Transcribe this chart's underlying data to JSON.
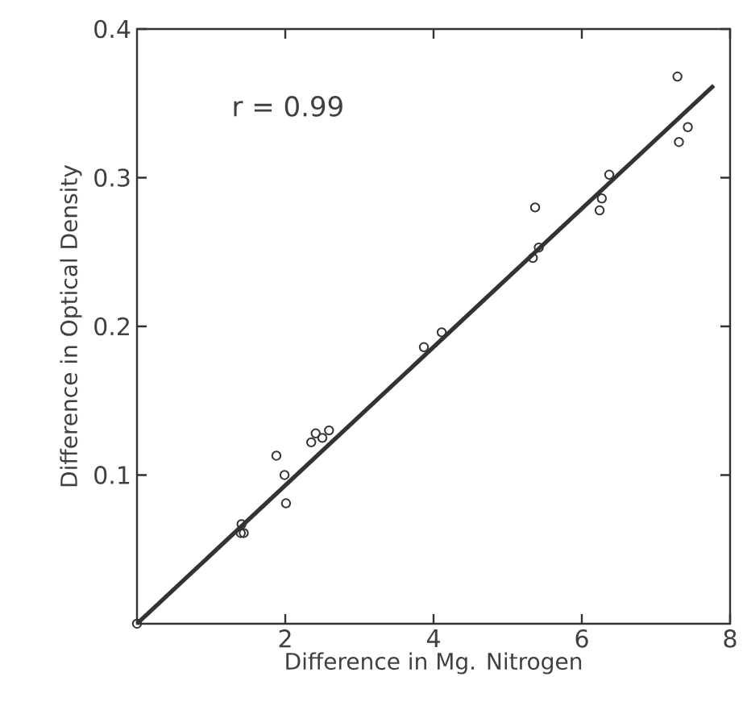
{
  "chart_data": {
    "type": "scatter",
    "xlabel": "Difference in Mg. Nitrogen",
    "ylabel": "Difference in Optical Density",
    "annotations": [
      "r = 0.99"
    ],
    "xlim": [
      0,
      8
    ],
    "ylim": [
      0,
      0.4
    ],
    "xticks": [
      2,
      4,
      6,
      8
    ],
    "yticks": [
      0.1,
      0.2,
      0.3,
      0.4
    ],
    "series": [
      {
        "color": "#333333",
        "marker": "circle",
        "x": [
          0,
          1.41,
          1.4,
          1.44,
          1.88,
          1.99,
          2.01,
          2.35,
          2.41,
          2.5,
          2.59,
          3.87,
          4.11,
          5.34,
          5.42,
          5.37,
          6.24,
          6.27,
          6.37,
          7.29,
          7.31,
          7.43
        ],
        "values": [
          0,
          0.067,
          0.061,
          0.061,
          0.113,
          0.1,
          0.081,
          0.122,
          0.128,
          0.125,
          0.13,
          0.186,
          0.196,
          0.246,
          0.253,
          0.28,
          0.278,
          0.286,
          0.302,
          0.368,
          0.324,
          0.334
        ]
      },
      {
        "type": "line",
        "color": "#333333",
        "marker": "none",
        "x": [
          0,
          7.78
        ],
        "values": [
          0,
          0.362
        ]
      }
    ]
  }
}
